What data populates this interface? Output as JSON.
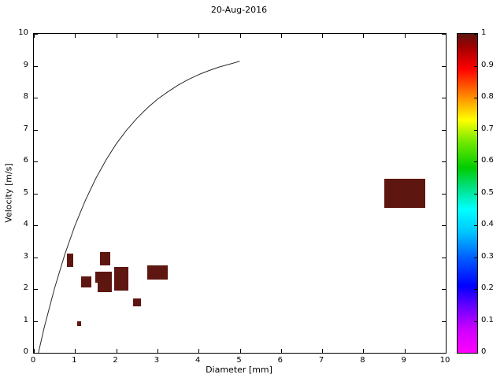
{
  "title": "20-Aug-2016",
  "chart_data": {
    "type": "heatmap",
    "title": "20-Aug-2016",
    "xlabel": "Diameter [mm]",
    "ylabel": "Velocity [m/s]",
    "xlim": [
      0,
      10
    ],
    "ylim": [
      0,
      10
    ],
    "grid": false,
    "legend": "none",
    "xticks": [
      "0",
      "1",
      "2",
      "3",
      "4",
      "5",
      "6",
      "7",
      "8",
      "9",
      "10"
    ],
    "yticks": [
      "0",
      "1",
      "2",
      "3",
      "4",
      "5",
      "6",
      "7",
      "8",
      "9",
      "10"
    ],
    "cell_color": "#5e1611",
    "cells": [
      {
        "d": [
          0.8,
          0.95
        ],
        "v": [
          2.7,
          3.1
        ],
        "value": 1
      },
      {
        "d": [
          1.05,
          1.15
        ],
        "v": [
          0.85,
          1.0
        ],
        "value": 1
      },
      {
        "d": [
          1.15,
          1.4
        ],
        "v": [
          2.05,
          2.4
        ],
        "value": 1
      },
      {
        "d": [
          1.6,
          1.85
        ],
        "v": [
          2.75,
          3.15
        ],
        "value": 1
      },
      {
        "d": [
          1.5,
          1.9
        ],
        "v": [
          2.2,
          2.55
        ],
        "value": 1
      },
      {
        "d": [
          1.55,
          1.9
        ],
        "v": [
          1.9,
          2.2
        ],
        "value": 1
      },
      {
        "d": [
          1.95,
          2.3
        ],
        "v": [
          2.2,
          2.7
        ],
        "value": 1
      },
      {
        "d": [
          1.95,
          2.3
        ],
        "v": [
          1.95,
          2.2
        ],
        "value": 1
      },
      {
        "d": [
          2.4,
          2.6
        ],
        "v": [
          1.45,
          1.7
        ],
        "value": 1
      },
      {
        "d": [
          2.75,
          3.25
        ],
        "v": [
          2.3,
          2.75
        ],
        "value": 1
      },
      {
        "d": [
          8.5,
          9.5
        ],
        "v": [
          4.55,
          5.45
        ],
        "value": 1
      }
    ],
    "curve": {
      "name": "terminal-velocity-curve",
      "color": "#2a2a2a",
      "x": [
        0.11,
        0.25,
        0.5,
        0.75,
        1.0,
        1.25,
        1.5,
        1.75,
        2.0,
        2.25,
        2.5,
        2.75,
        3.0,
        3.25,
        3.5,
        3.75,
        4.0,
        4.25,
        4.5,
        4.75,
        5.0
      ],
      "y": [
        0,
        0.79,
        2.02,
        3.08,
        4.0,
        4.78,
        5.46,
        6.04,
        6.55,
        6.98,
        7.35,
        7.67,
        7.95,
        8.18,
        8.39,
        8.57,
        8.72,
        8.85,
        8.96,
        9.05,
        9.14
      ]
    },
    "colorbar": {
      "min": 0,
      "max": 1,
      "tick_labels": [
        "0",
        "0.1",
        "0.2",
        "0.3",
        "0.4",
        "0.5",
        "0.6",
        "0.7",
        "0.8",
        "0.9",
        "1"
      ],
      "tick_values": [
        0,
        0.1,
        0.2,
        0.3,
        0.4,
        0.5,
        0.6,
        0.7,
        0.8,
        0.9,
        1
      ],
      "stops": [
        {
          "pos": 0.0,
          "color": "#ff00ff"
        },
        {
          "pos": 0.07,
          "color": "#d000ff"
        },
        {
          "pos": 0.14,
          "color": "#7000ff"
        },
        {
          "pos": 0.21,
          "color": "#0000ff"
        },
        {
          "pos": 0.3,
          "color": "#0060ff"
        },
        {
          "pos": 0.38,
          "color": "#00c8ff"
        },
        {
          "pos": 0.45,
          "color": "#00ffff"
        },
        {
          "pos": 0.52,
          "color": "#00e080"
        },
        {
          "pos": 0.58,
          "color": "#00cc00"
        },
        {
          "pos": 0.66,
          "color": "#70e800"
        },
        {
          "pos": 0.73,
          "color": "#ffff00"
        },
        {
          "pos": 0.81,
          "color": "#ff8000"
        },
        {
          "pos": 0.89,
          "color": "#ff0000"
        },
        {
          "pos": 0.96,
          "color": "#a00000"
        },
        {
          "pos": 1.0,
          "color": "#5e1611"
        }
      ]
    }
  }
}
